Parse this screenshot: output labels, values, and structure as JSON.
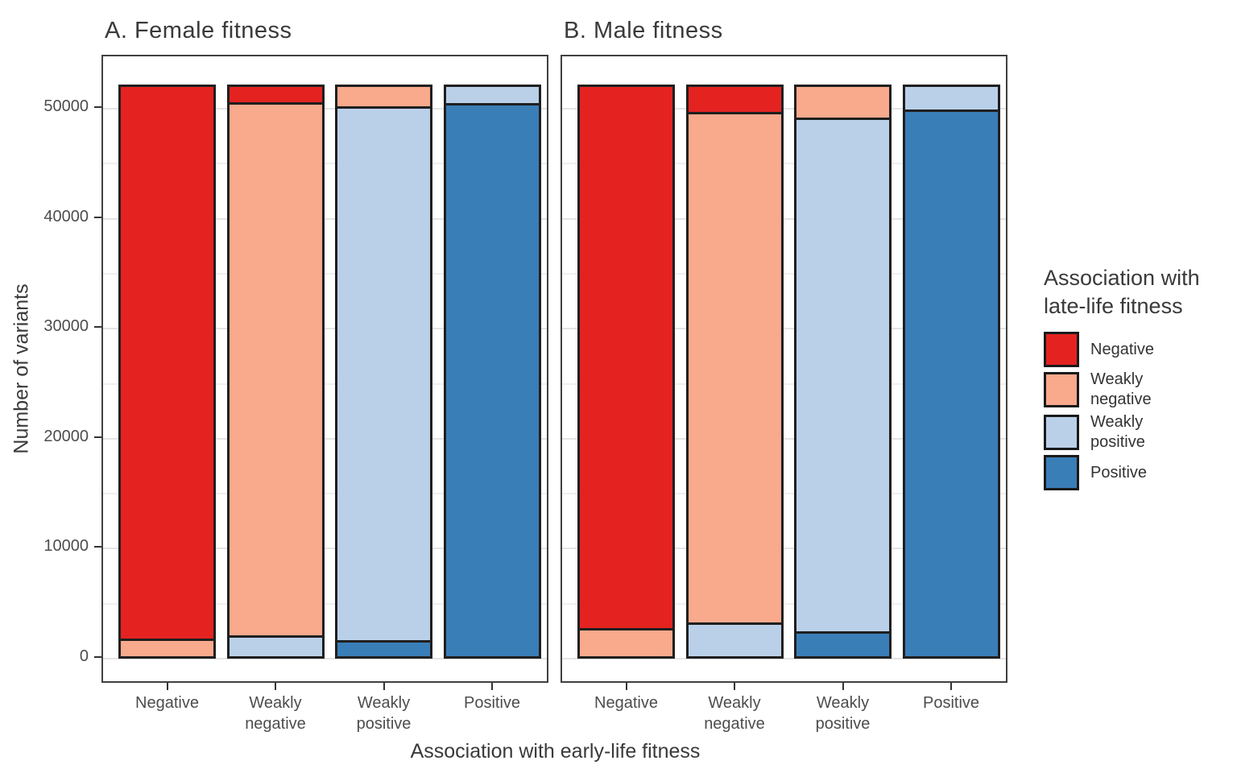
{
  "y_axis_title": "Number of variants",
  "x_axis_title": "Association with early-life fitness",
  "legend": {
    "title_lines": [
      "Association with",
      "late-life fitness"
    ],
    "entries": [
      {
        "label_lines": [
          "Negative"
        ],
        "color": "#E42321"
      },
      {
        "label_lines": [
          "Weakly",
          "negative"
        ],
        "color": "#F9A98C"
      },
      {
        "label_lines": [
          "Weakly",
          "positive"
        ],
        "color": "#BAD0E9"
      },
      {
        "label_lines": [
          "Positive"
        ],
        "color": "#3A7EB8"
      }
    ]
  },
  "chart_data": {
    "type": "bar",
    "stacked": true,
    "title": "",
    "xlabel": "Association with early-life fitness",
    "ylabel": "Number of variants",
    "x_categories": [
      "Negative",
      "Weakly negative",
      "Weakly positive",
      "Positive"
    ],
    "x_categories_lines": [
      [
        "Negative"
      ],
      [
        "Weakly",
        "negative"
      ],
      [
        "Weakly",
        "positive"
      ],
      [
        "Positive"
      ]
    ],
    "stack_order_bottom_to_top": [
      "Positive",
      "Weakly positive",
      "Weakly negative",
      "Negative"
    ],
    "y_ticks": [
      0,
      10000,
      20000,
      30000,
      40000,
      50000
    ],
    "ylim": [
      0,
      54700
    ],
    "grid_step": 5000,
    "grid_on": true,
    "legend_position": "right",
    "bar_total_each": 52200,
    "panels": [
      {
        "title": "A. Female fitness",
        "series": [
          {
            "name": "Negative",
            "color": "#E42321",
            "values": [
              50500,
              1700,
              0,
              0
            ]
          },
          {
            "name": "Weakly negative",
            "color": "#F9A98C",
            "values": [
              1700,
              48500,
              2100,
              0
            ]
          },
          {
            "name": "Weakly positive",
            "color": "#BAD0E9",
            "values": [
              0,
              2000,
              48500,
              1800
            ]
          },
          {
            "name": "Positive",
            "color": "#3A7EB8",
            "values": [
              0,
              0,
              1600,
              50400
            ]
          }
        ]
      },
      {
        "title": "B. Male fitness",
        "series": [
          {
            "name": "Negative",
            "color": "#E42321",
            "values": [
              49500,
              2600,
              0,
              0
            ]
          },
          {
            "name": "Weakly negative",
            "color": "#F9A98C",
            "values": [
              2700,
              46400,
              3100,
              0
            ]
          },
          {
            "name": "Weakly positive",
            "color": "#BAD0E9",
            "values": [
              0,
              3200,
              46700,
              2400
            ]
          },
          {
            "name": "Positive",
            "color": "#3A7EB8",
            "values": [
              0,
              0,
              2400,
              49800
            ]
          }
        ]
      }
    ]
  },
  "style": {
    "segment_border": "#1F1F1F",
    "panel_border": "#404040",
    "gridline_major": "#E4E4E4",
    "gridline_minor": "#EFEFEF",
    "text_color": "#3A3A3A",
    "tick_label_color": "#4D4D4D",
    "background": "#FFFFFF"
  }
}
